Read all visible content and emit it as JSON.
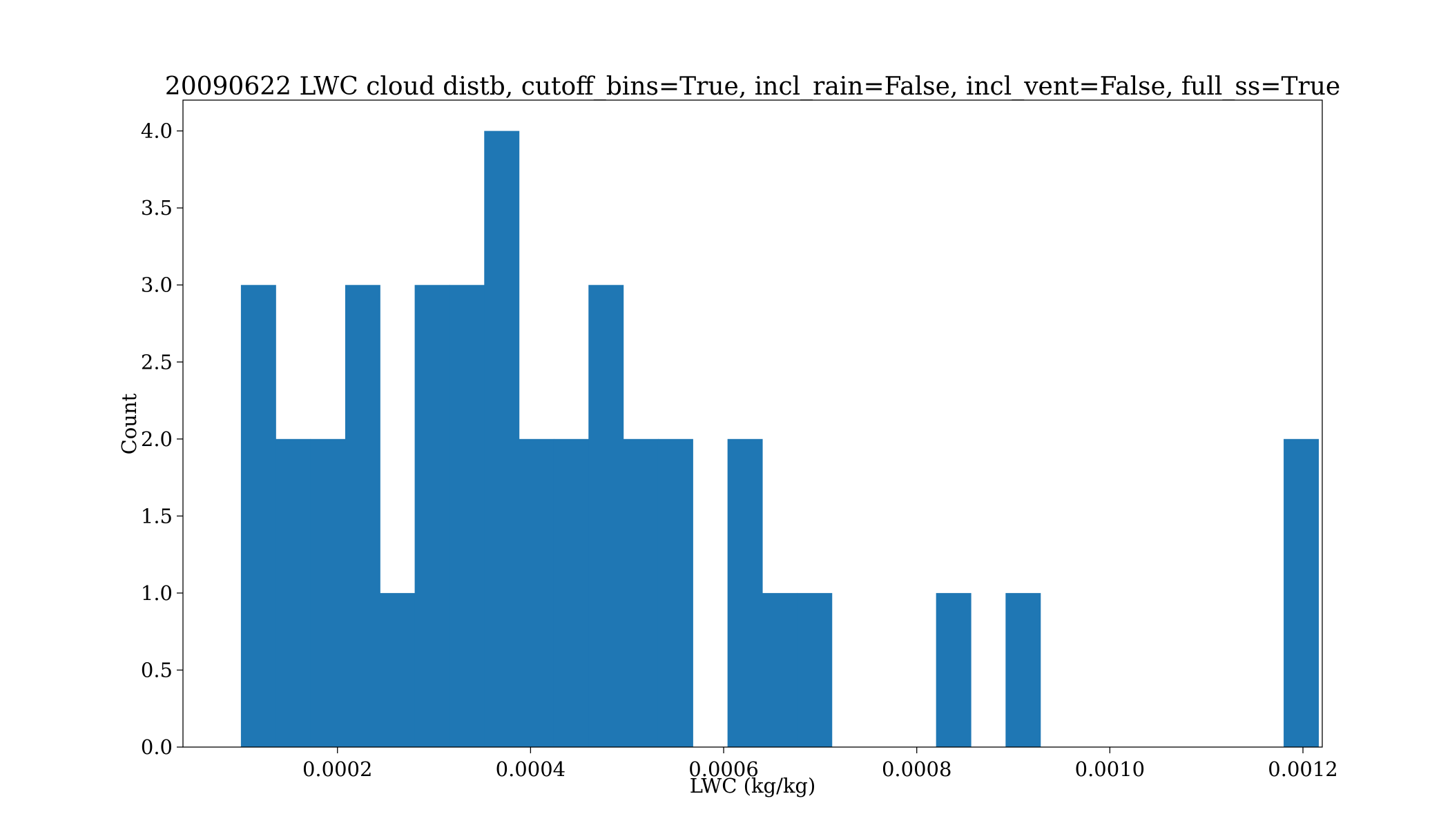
{
  "chart_data": {
    "type": "bar",
    "title": "20090622 LWC cloud distb, cutoff_bins=True, incl_rain=False, incl_vent=False, full_ss=True",
    "xlabel": "LWC (kg/kg)",
    "ylabel": "Count",
    "xlim": [
      4e-05,
      0.00122
    ],
    "ylim": [
      0,
      4.2
    ],
    "grid": false,
    "legend": "none",
    "bar_color": "#1f77b4",
    "bin_start": 0.0001,
    "bin_width": 3.6e-05,
    "counts": [
      3,
      2,
      2,
      3,
      1,
      3,
      3,
      4,
      2,
      2,
      3,
      2,
      2,
      0,
      2,
      1,
      1,
      0,
      0,
      0,
      1,
      0,
      1,
      0,
      0,
      0,
      0,
      0,
      0,
      0,
      2
    ],
    "x_ticks": [
      0.0002,
      0.0004,
      0.0006,
      0.0008,
      0.001,
      0.0012
    ],
    "x_tick_labels": [
      "0.0002",
      "0.0004",
      "0.0006",
      "0.0008",
      "0.0010",
      "0.0012"
    ],
    "y_ticks": [
      0,
      0.5,
      1,
      1.5,
      2,
      2.5,
      3,
      3.5,
      4
    ],
    "y_tick_labels": [
      "0.0",
      "0.5",
      "1.0",
      "1.5",
      "2.0",
      "2.5",
      "3.0",
      "3.5",
      "4.0"
    ]
  }
}
